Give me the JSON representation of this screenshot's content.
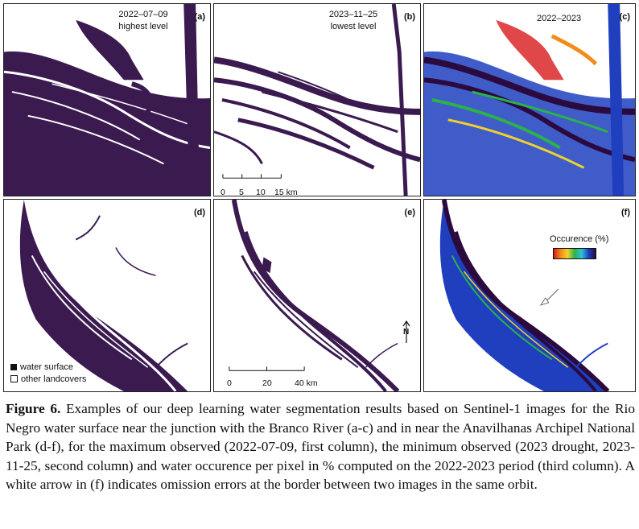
{
  "panels": {
    "a": {
      "label": "(a)",
      "date": "2022–07–09",
      "sub": "highest level"
    },
    "b": {
      "label": "(b)",
      "date": "2023–11–25",
      "sub": "lowest level"
    },
    "c": {
      "label": "(c)",
      "date": "2022–2023"
    },
    "d": {
      "label": "(d)"
    },
    "e": {
      "label": "(e)"
    },
    "f": {
      "label": "(f)",
      "colorbar_title": "Occurence (%)"
    }
  },
  "scalebar_top": {
    "ticks": [
      "0",
      "5",
      "10",
      "15 km"
    ]
  },
  "scalebar_bottom": {
    "ticks": [
      "0",
      "20",
      "40 km"
    ]
  },
  "north_label": "N",
  "legend": {
    "water": "water surface",
    "other": "other landcovers"
  },
  "colors": {
    "water": "#3a1a4f",
    "occ_low": "#d7191c",
    "occ_mid": "#2bb24a",
    "occ_high": "#1f3fbf"
  },
  "caption": {
    "lead": "Figure 6.",
    "text": " Examples of our deep learning water segmentation results based on Sentinel-1 images for the Rio Negro water surface near the junction with the Branco River (a-c) and in near the Anavilhanas Archipel National Park (d-f), for the maximum observed (2022-07-09, first column), the minimum observed (2023 drought, 2023-11-25, second column) and water occurence per pixel in % computed on the 2022-2023 period (third column). A white arrow in (f) indicates omission errors at the border between two images in the same orbit."
  }
}
